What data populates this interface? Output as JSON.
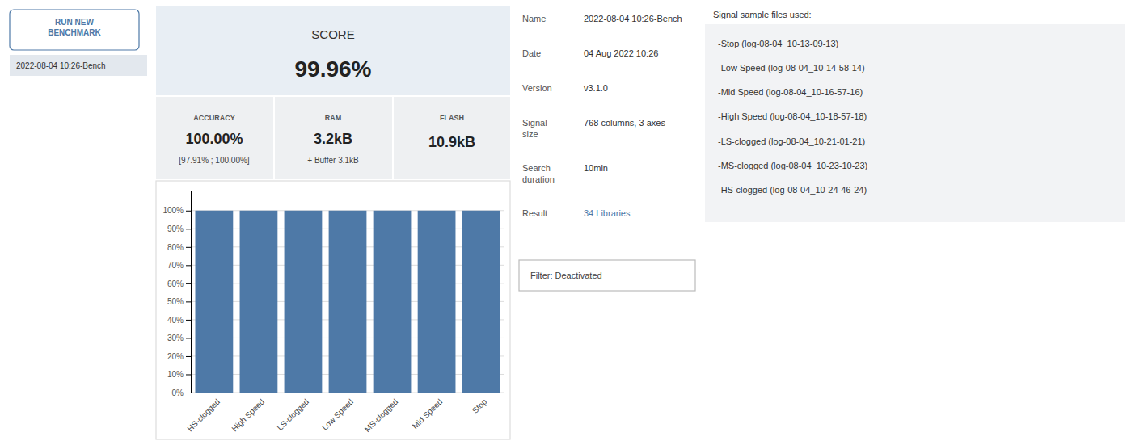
{
  "chart_data": {
    "type": "bar",
    "categories": [
      "HS-clogged",
      "High Speed",
      "LS-clogged",
      "Low Speed",
      "MS-clogged",
      "Mid Speed",
      "Stop"
    ],
    "values": [
      100.0,
      100.0,
      100.0,
      100.0,
      100.0,
      100.0,
      100.0
    ],
    "ylim": [
      0,
      111
    ],
    "yticks": [
      {
        "value": 0,
        "label": "0%"
      },
      {
        "value": 10,
        "label": "10%"
      },
      {
        "value": 20,
        "label": "20%"
      },
      {
        "value": 30,
        "label": "30%"
      },
      {
        "value": 40,
        "label": "40%"
      },
      {
        "value": 50,
        "label": "50%"
      },
      {
        "value": 60,
        "label": "60%"
      },
      {
        "value": 70,
        "label": "70%"
      },
      {
        "value": 80,
        "label": "80%"
      },
      {
        "value": 90,
        "label": "90%"
      },
      {
        "value": 100,
        "label": "100%"
      }
    ],
    "grid": true,
    "annotations": [
      "RUN NEW\nBENCHMARK",
      "2022-08-04 10:26-Bench",
      "SCORE",
      "99.96%",
      "ACCURACY",
      "100.00%",
      "[97.91% ; 100.00%]",
      "RAM",
      "3.2kB",
      "+ Buffer 3.1kB",
      "FLASH",
      "10.9kB",
      "Name",
      "2022-08-04 10:26-Bench",
      "Date",
      "04 Aug 2022 10:26",
      "Version",
      "v3.1.0",
      "Signal\nsize",
      "768 columns, 3 axes",
      "Search\nduration",
      "10min",
      "Result",
      "34 Libraries",
      "Filter: Deactivated",
      "Signal sample files used:",
      "-Stop (log-08-04_10-13-09-13)",
      "-Low Speed (log-08-04_10-14-58-14)",
      "-Mid Speed (log-08-04_10-16-57-16)",
      "-High Speed (log-08-04_10-18-57-18)",
      "-LS-clogged (log-08-04_10-21-01-21)",
      "-MS-clogged (log-08-04_10-23-10-23)",
      "-HS-clogged (log-08-04_10-24-46-24)"
    ]
  }
}
